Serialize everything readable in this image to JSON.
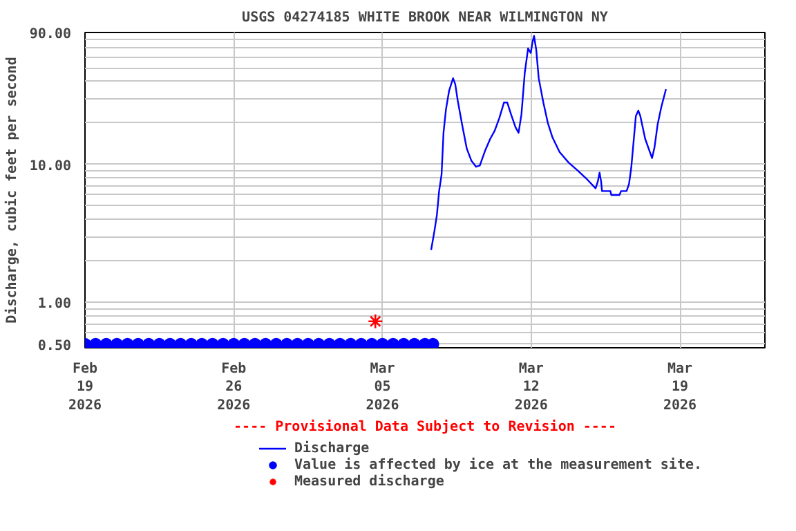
{
  "chart_data": {
    "type": "line",
    "title": "USGS 04274185 WHITE BROOK NEAR WILMINGTON NY",
    "ylabel": "Discharge, cubic feet per second",
    "annotations": [
      "---- Provisional Data Subject to Revision ----"
    ],
    "log": "y",
    "grid": true,
    "legend": "bottom",
    "xlim": [
      "2026-02-19",
      "2026-03-23"
    ],
    "xticks": [
      {
        "value": "2026-02-19",
        "label": "Feb\n19\n2026"
      },
      {
        "value": "2026-02-26",
        "label": "Feb\n26\n2026"
      },
      {
        "value": "2026-03-05",
        "label": "Mar\n05\n2026"
      },
      {
        "value": "2026-03-12",
        "label": "Mar\n12\n2026"
      },
      {
        "value": "2026-03-19",
        "label": "Mar\n19\n2026"
      }
    ],
    "ylim": [
      0.47,
      90
    ],
    "yticks": [
      {
        "value": 0.5,
        "label": "0.50"
      },
      {
        "value": 0.6,
        "label": null
      },
      {
        "value": 0.7,
        "label": null
      },
      {
        "value": 0.8,
        "label": null
      },
      {
        "value": 0.9,
        "label": null
      },
      {
        "value": 1,
        "label": "1.00"
      },
      {
        "value": 2,
        "label": null
      },
      {
        "value": 3,
        "label": null
      },
      {
        "value": 4,
        "label": null
      },
      {
        "value": 5,
        "label": null
      },
      {
        "value": 6,
        "label": null
      },
      {
        "value": 7,
        "label": null
      },
      {
        "value": 8,
        "label": null
      },
      {
        "value": 9,
        "label": null
      },
      {
        "value": 10,
        "label": "10.00"
      },
      {
        "value": 20,
        "label": null
      },
      {
        "value": 30,
        "label": null
      },
      {
        "value": 40,
        "label": null
      },
      {
        "value": 50,
        "label": null
      },
      {
        "value": 60,
        "label": null
      },
      {
        "value": 70,
        "label": null
      },
      {
        "value": 80,
        "label": null
      },
      {
        "value": 90,
        "label": "90.00"
      }
    ],
    "series": [
      {
        "name": "Discharge",
        "color": "#0000ff",
        "x": [
          "2026-03-07T07:00",
          "2026-03-07T10:45",
          "2026-03-07T13:30",
          "2026-03-07T16:00",
          "2026-03-07T18:45",
          "2026-03-07T21:00",
          "2026-03-07T23:45",
          "2026-03-08T03:15",
          "2026-03-08T07:45",
          "2026-03-08T10:15",
          "2026-03-08T13:00",
          "2026-03-08T18:15",
          "2026-03-08T23:15",
          "2026-03-09T04:30",
          "2026-03-09T09:45",
          "2026-03-09T14:00",
          "2026-03-09T20:15",
          "2026-03-10T01:45",
          "2026-03-10T06:45",
          "2026-03-10T12:00",
          "2026-03-10T17:15",
          "2026-03-10T21:00",
          "2026-03-11T01:15",
          "2026-03-11T06:15",
          "2026-03-11T09:45",
          "2026-03-11T13:00",
          "2026-03-11T16:45",
          "2026-03-11T20:30",
          "2026-03-11T23:30",
          "2026-03-12T01:45",
          "2026-03-12T03:15",
          "2026-03-12T05:45",
          "2026-03-12T08:30",
          "2026-03-12T13:45",
          "2026-03-12T18:45",
          "2026-03-13T00:00",
          "2026-03-13T08:00",
          "2026-03-13T18:15",
          "2026-03-14T04:45",
          "2026-03-14T15:00",
          "2026-03-15T00:45",
          "2026-03-15T03:15",
          "2026-03-15T05:15",
          "2026-03-15T07:00",
          "2026-03-15T08:00",
          "2026-03-15T17:30",
          "2026-03-15T18:30",
          "2026-03-16T03:45",
          "2026-03-16T05:30",
          "2026-03-16T11:45",
          "2026-03-16T14:30",
          "2026-03-16T17:00",
          "2026-03-16T19:45",
          "2026-03-16T22:15",
          "2026-03-17T01:00",
          "2026-03-17T03:15",
          "2026-03-17T08:45",
          "2026-03-17T14:00",
          "2026-03-17T16:30",
          "2026-03-17T19:15",
          "2026-03-17T22:45",
          "2026-03-18T03:00",
          "2026-03-18T08:15"
        ],
        "values": [
          2.4,
          3.3,
          4.3,
          6.4,
          8.4,
          17,
          25,
          34,
          42,
          38,
          29,
          19,
          13,
          10.6,
          9.6,
          9.8,
          12.7,
          15.3,
          17.5,
          21.6,
          28,
          28,
          23,
          18.6,
          16.9,
          23,
          46,
          69,
          64,
          78,
          85,
          67,
          42,
          28,
          20,
          15.7,
          12.3,
          10.3,
          9.0,
          7.8,
          6.7,
          7.5,
          8.7,
          7.5,
          6.4,
          6.4,
          6.0,
          6.0,
          6.4,
          6.4,
          7.2,
          9.4,
          14.8,
          22.4,
          24.5,
          22.4,
          15.3,
          12.3,
          11.1,
          13.2,
          19.3,
          26,
          35
        ]
      },
      {
        "name": "Value is affected by ice at the measurement site.",
        "type": "scatter",
        "marker": "circle",
        "color": "#0000ff",
        "x": [
          "2026-02-19T00:00",
          "2026-02-19T12:00",
          "2026-02-20T00:00",
          "2026-02-20T12:00",
          "2026-02-21T00:00",
          "2026-02-21T12:00",
          "2026-02-22T00:00",
          "2026-02-22T12:00",
          "2026-02-23T00:00",
          "2026-02-23T12:00",
          "2026-02-24T00:00",
          "2026-02-24T12:00",
          "2026-02-25T00:00",
          "2026-02-25T12:00",
          "2026-02-26T00:00",
          "2026-02-26T12:00",
          "2026-02-27T00:00",
          "2026-02-27T12:00",
          "2026-02-28T00:00",
          "2026-02-28T12:00",
          "2026-03-01T00:00",
          "2026-03-01T12:00",
          "2026-03-02T00:00",
          "2026-03-02T12:00",
          "2026-03-03T00:00",
          "2026-03-03T12:00",
          "2026-03-04T00:00",
          "2026-03-04T12:00",
          "2026-03-05T00:00",
          "2026-03-05T12:00",
          "2026-03-06T00:00",
          "2026-03-06T12:00",
          "2026-03-07T00:00",
          "2026-03-07T09:00"
        ],
        "values": [
          0.5,
          0.5,
          0.5,
          0.5,
          0.5,
          0.5,
          0.5,
          0.5,
          0.5,
          0.5,
          0.5,
          0.5,
          0.5,
          0.5,
          0.5,
          0.5,
          0.5,
          0.5,
          0.5,
          0.5,
          0.5,
          0.5,
          0.5,
          0.5,
          0.5,
          0.5,
          0.5,
          0.5,
          0.5,
          0.5,
          0.5,
          0.5,
          0.5,
          0.5
        ]
      },
      {
        "name": "Measured discharge",
        "type": "scatter",
        "marker": "cross",
        "color": "#ff0000",
        "x": [
          "2026-03-04T16:00"
        ],
        "values": [
          0.73
        ]
      }
    ]
  }
}
